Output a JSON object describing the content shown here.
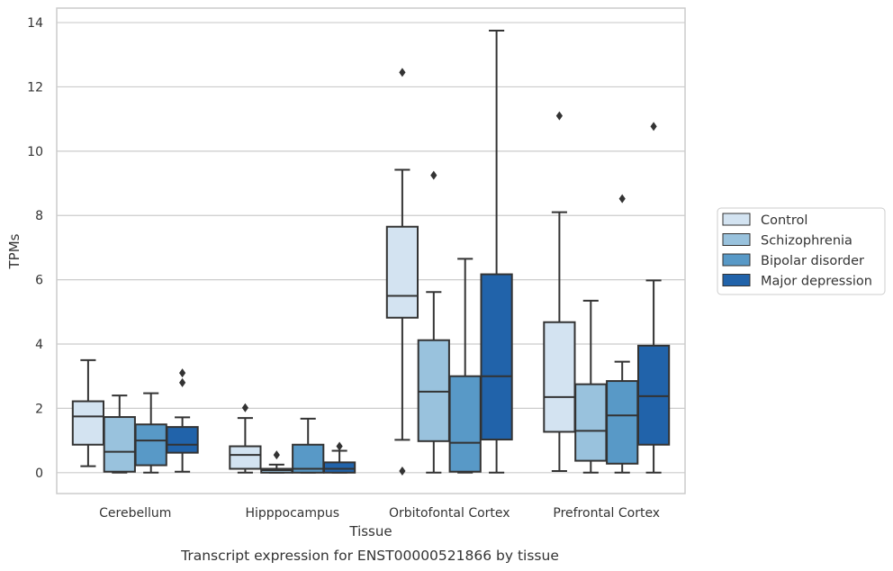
{
  "chart_data": {
    "type": "box",
    "xlabel": "Tissue",
    "ylabel": "TPMs",
    "caption": "Transcript expression for ENST00000521866 by tissue",
    "ylim": [
      -0.65,
      14.45
    ],
    "yticks": [
      0,
      2,
      4,
      6,
      8,
      10,
      12,
      14
    ],
    "grid": "horizontal",
    "legend_position": "right",
    "categories": [
      "Cerebellum",
      "Hipppocampus",
      "Orbitofontal Cortex",
      "Prefrontal Cortex"
    ],
    "series": [
      {
        "name": "Control",
        "color": "#d3e3f1",
        "boxes": [
          {
            "whislo": 0.2,
            "q1": 0.87,
            "med": 1.75,
            "q3": 2.22,
            "whishi": 3.5,
            "fliers": []
          },
          {
            "whislo": 0.0,
            "q1": 0.12,
            "med": 0.55,
            "q3": 0.82,
            "whishi": 1.7,
            "fliers": [
              2.02
            ]
          },
          {
            "whislo": 1.02,
            "q1": 4.82,
            "med": 5.5,
            "q3": 7.65,
            "whishi": 9.42,
            "fliers": [
              12.45,
              0.05
            ]
          },
          {
            "whislo": 0.05,
            "q1": 1.27,
            "med": 2.35,
            "q3": 4.68,
            "whishi": 8.1,
            "fliers": [
              11.1
            ]
          }
        ]
      },
      {
        "name": "Schizophrenia",
        "color": "#99c2dd",
        "boxes": [
          {
            "whislo": 0.0,
            "q1": 0.03,
            "med": 0.65,
            "q3": 1.73,
            "whishi": 2.4,
            "fliers": []
          },
          {
            "whislo": 0.0,
            "q1": 0.0,
            "med": 0.08,
            "q3": 0.12,
            "whishi": 0.25,
            "fliers": [
              0.55
            ]
          },
          {
            "whislo": 0.0,
            "q1": 0.98,
            "med": 2.52,
            "q3": 4.12,
            "whishi": 5.62,
            "fliers": [
              9.25
            ]
          },
          {
            "whislo": 0.0,
            "q1": 0.37,
            "med": 1.3,
            "q3": 2.75,
            "whishi": 5.35,
            "fliers": []
          }
        ]
      },
      {
        "name": "Bipolar disorder",
        "color": "#5899c7",
        "boxes": [
          {
            "whislo": 0.0,
            "q1": 0.23,
            "med": 1.0,
            "q3": 1.5,
            "whishi": 2.47,
            "fliers": []
          },
          {
            "whislo": 0.0,
            "q1": 0.0,
            "med": 0.12,
            "q3": 0.87,
            "whishi": 1.68,
            "fliers": []
          },
          {
            "whislo": 0.0,
            "q1": 0.03,
            "med": 0.93,
            "q3": 3.0,
            "whishi": 6.65,
            "fliers": []
          },
          {
            "whislo": 0.0,
            "q1": 0.28,
            "med": 1.78,
            "q3": 2.85,
            "whishi": 3.45,
            "fliers": [
              8.52
            ]
          }
        ]
      },
      {
        "name": "Major depression",
        "color": "#2163aa",
        "boxes": [
          {
            "whislo": 0.03,
            "q1": 0.62,
            "med": 0.87,
            "q3": 1.42,
            "whishi": 1.72,
            "fliers": [
              2.8,
              3.1
            ]
          },
          {
            "whislo": 0.0,
            "q1": 0.0,
            "med": 0.12,
            "q3": 0.32,
            "whishi": 0.68,
            "fliers": [
              0.82
            ]
          },
          {
            "whislo": 0.0,
            "q1": 1.03,
            "med": 3.0,
            "q3": 6.17,
            "whishi": 13.75,
            "fliers": []
          },
          {
            "whislo": 0.0,
            "q1": 0.87,
            "med": 2.38,
            "q3": 3.95,
            "whishi": 5.98,
            "fliers": [
              10.77
            ]
          }
        ]
      }
    ]
  },
  "colors": {
    "edge": "#333333",
    "grid": "#cccccc",
    "frame": "#cccccc"
  }
}
